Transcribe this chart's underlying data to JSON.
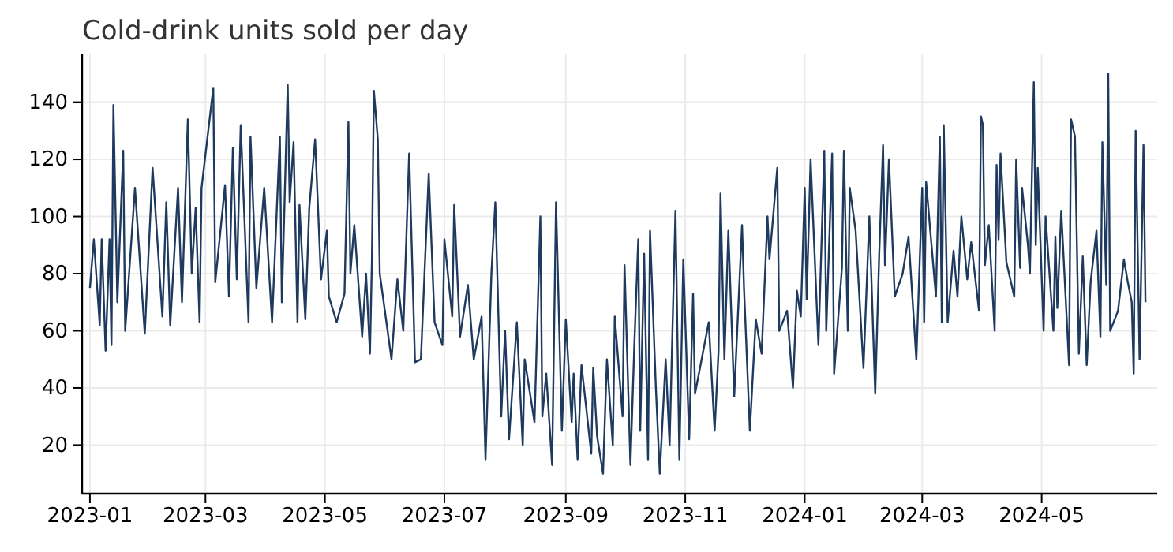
{
  "chart_data": {
    "type": "line",
    "title": "Cold-drink units sold per day",
    "x": [
      "2023-01-01",
      "2023-01-03",
      "2023-01-06",
      "2023-01-07",
      "2023-01-09",
      "2023-01-11",
      "2023-01-12",
      "2023-01-13",
      "2023-01-15",
      "2023-01-18",
      "2023-01-19",
      "2023-01-24",
      "2023-01-29",
      "2023-02-02",
      "2023-02-07",
      "2023-02-09",
      "2023-02-11",
      "2023-02-15",
      "2023-02-17",
      "2023-02-20",
      "2023-02-22",
      "2023-02-24",
      "2023-02-26",
      "2023-02-27",
      "2023-03-05",
      "2023-03-06",
      "2023-03-11",
      "2023-03-13",
      "2023-03-15",
      "2023-03-17",
      "2023-03-19",
      "2023-03-23",
      "2023-03-24",
      "2023-03-27",
      "2023-03-31",
      "2023-04-04",
      "2023-04-08",
      "2023-04-09",
      "2023-04-12",
      "2023-04-13",
      "2023-04-15",
      "2023-04-17",
      "2023-04-18",
      "2023-04-21",
      "2023-04-23",
      "2023-04-26",
      "2023-04-29",
      "2023-05-02",
      "2023-05-03",
      "2023-05-07",
      "2023-05-11",
      "2023-05-13",
      "2023-05-14",
      "2023-05-16",
      "2023-05-20",
      "2023-05-22",
      "2023-05-24",
      "2023-05-25",
      "2023-05-26",
      "2023-05-28",
      "2023-05-29",
      "2023-06-04",
      "2023-06-07",
      "2023-06-10",
      "2023-06-13",
      "2023-06-16",
      "2023-06-19",
      "2023-06-23",
      "2023-06-26",
      "2023-06-30",
      "2023-07-01",
      "2023-07-05",
      "2023-07-06",
      "2023-07-09",
      "2023-07-13",
      "2023-07-16",
      "2023-07-20",
      "2023-07-22",
      "2023-07-25",
      "2023-07-27",
      "2023-07-30",
      "2023-08-01",
      "2023-08-03",
      "2023-08-07",
      "2023-08-10",
      "2023-08-11",
      "2023-08-16",
      "2023-08-19",
      "2023-08-20",
      "2023-08-22",
      "2023-08-25",
      "2023-08-27",
      "2023-08-30",
      "2023-09-01",
      "2023-09-04",
      "2023-09-05",
      "2023-09-07",
      "2023-09-09",
      "2023-09-14",
      "2023-09-15",
      "2023-09-17",
      "2023-09-20",
      "2023-09-22",
      "2023-09-25",
      "2023-09-26",
      "2023-09-30",
      "2023-10-01",
      "2023-10-04",
      "2023-10-06",
      "2023-10-08",
      "2023-10-09",
      "2023-10-11",
      "2023-10-13",
      "2023-10-14",
      "2023-10-17",
      "2023-10-19",
      "2023-10-22",
      "2023-10-24",
      "2023-10-27",
      "2023-10-29",
      "2023-10-31",
      "2023-11-03",
      "2023-11-05",
      "2023-11-06",
      "2023-11-13",
      "2023-11-16",
      "2023-11-18",
      "2023-11-19",
      "2023-11-21",
      "2023-11-23",
      "2023-11-26",
      "2023-11-30",
      "2023-12-01",
      "2023-12-04",
      "2023-12-07",
      "2023-12-10",
      "2023-12-13",
      "2023-12-14",
      "2023-12-18",
      "2023-12-19",
      "2023-12-23",
      "2023-12-26",
      "2023-12-28",
      "2023-12-30",
      "2024-01-01",
      "2024-01-02",
      "2024-01-04",
      "2024-01-08",
      "2024-01-11",
      "2024-01-12",
      "2024-01-15",
      "2024-01-16",
      "2024-01-20",
      "2024-01-21",
      "2024-01-23",
      "2024-01-24",
      "2024-01-27",
      "2024-01-31",
      "2024-02-03",
      "2024-02-06",
      "2024-02-08",
      "2024-02-10",
      "2024-02-11",
      "2024-02-13",
      "2024-02-16",
      "2024-02-20",
      "2024-02-23",
      "2024-02-27",
      "2024-03-01",
      "2024-03-02",
      "2024-03-03",
      "2024-03-08",
      "2024-03-10",
      "2024-03-11",
      "2024-03-12",
      "2024-03-14",
      "2024-03-17",
      "2024-03-19",
      "2024-03-21",
      "2024-03-24",
      "2024-03-26",
      "2024-03-30",
      "2024-03-31",
      "2024-04-01",
      "2024-04-02",
      "2024-04-04",
      "2024-04-07",
      "2024-04-08",
      "2024-04-09",
      "2024-04-10",
      "2024-04-13",
      "2024-04-17",
      "2024-04-18",
      "2024-04-20",
      "2024-04-21",
      "2024-04-24",
      "2024-04-25",
      "2024-04-27",
      "2024-04-28",
      "2024-04-29",
      "2024-05-02",
      "2024-05-03",
      "2024-05-07",
      "2024-05-08",
      "2024-05-09",
      "2024-05-11",
      "2024-05-13",
      "2024-05-15",
      "2024-05-16",
      "2024-05-18",
      "2024-05-20",
      "2024-05-22",
      "2024-05-24",
      "2024-05-26",
      "2024-05-29",
      "2024-05-31",
      "2024-06-01",
      "2024-06-03",
      "2024-06-04",
      "2024-06-05",
      "2024-06-09",
      "2024-06-12",
      "2024-06-14",
      "2024-06-16",
      "2024-06-17",
      "2024-06-18",
      "2024-06-20",
      "2024-06-22",
      "2024-06-23"
    ],
    "series": [
      {
        "color": "#1f3a5f",
        "values": [
          75,
          92,
          62,
          92,
          53,
          92,
          55,
          139,
          70,
          123,
          60,
          110,
          59,
          117,
          65,
          105,
          62,
          110,
          70,
          134,
          80,
          103,
          63,
          110,
          145,
          77,
          111,
          72,
          124,
          78,
          132,
          63,
          128,
          75,
          110,
          63,
          128,
          70,
          146,
          105,
          126,
          63,
          104,
          64,
          103,
          127,
          78,
          95,
          72,
          63,
          73,
          133,
          80,
          97,
          58,
          80,
          52,
          85,
          144,
          127,
          80,
          50,
          78,
          60,
          122,
          49,
          50,
          115,
          63,
          55,
          92,
          65,
          104,
          58,
          76,
          50,
          65,
          15,
          80,
          105,
          30,
          60,
          22,
          63,
          20,
          50,
          28,
          100,
          30,
          45,
          13,
          105,
          25,
          64,
          28,
          45,
          15,
          48,
          17,
          47,
          23,
          10,
          50,
          20,
          65,
          30,
          83,
          13,
          55,
          92,
          25,
          87,
          15,
          95,
          40,
          10,
          50,
          20,
          102,
          15,
          85,
          22,
          73,
          38,
          63,
          25,
          53,
          108,
          50,
          95,
          37,
          97,
          75,
          25,
          64,
          52,
          100,
          85,
          117,
          60,
          67,
          40,
          74,
          65,
          110,
          71,
          120,
          55,
          123,
          60,
          122,
          45,
          82,
          123,
          60,
          110,
          95,
          47,
          100,
          38,
          86,
          125,
          83,
          120,
          72,
          80,
          93,
          50,
          110,
          63,
          112,
          72,
          128,
          63,
          132,
          63,
          88,
          72,
          100,
          78,
          91,
          67,
          135,
          132,
          83,
          97,
          60,
          118,
          92,
          122,
          84,
          72,
          120,
          82,
          110,
          90,
          80,
          147,
          90,
          117,
          60,
          100,
          60,
          93,
          68,
          102,
          75,
          48,
          134,
          128,
          52,
          86,
          48,
          77,
          95,
          58,
          126,
          76,
          150,
          60,
          67,
          85,
          77,
          70,
          45,
          130,
          50,
          125,
          70
        ]
      }
    ],
    "xlim": [
      "2022-12-28",
      "2024-06-29"
    ],
    "xticks": [
      "2023-01",
      "2023-03",
      "2023-05",
      "2023-07",
      "2023-09",
      "2023-11",
      "2024-01",
      "2024-03",
      "2024-05"
    ],
    "ylim": [
      3,
      157
    ],
    "yticks": [
      20,
      40,
      60,
      80,
      100,
      120,
      140
    ],
    "grid": true,
    "line_style": "solid",
    "marker": "none"
  }
}
